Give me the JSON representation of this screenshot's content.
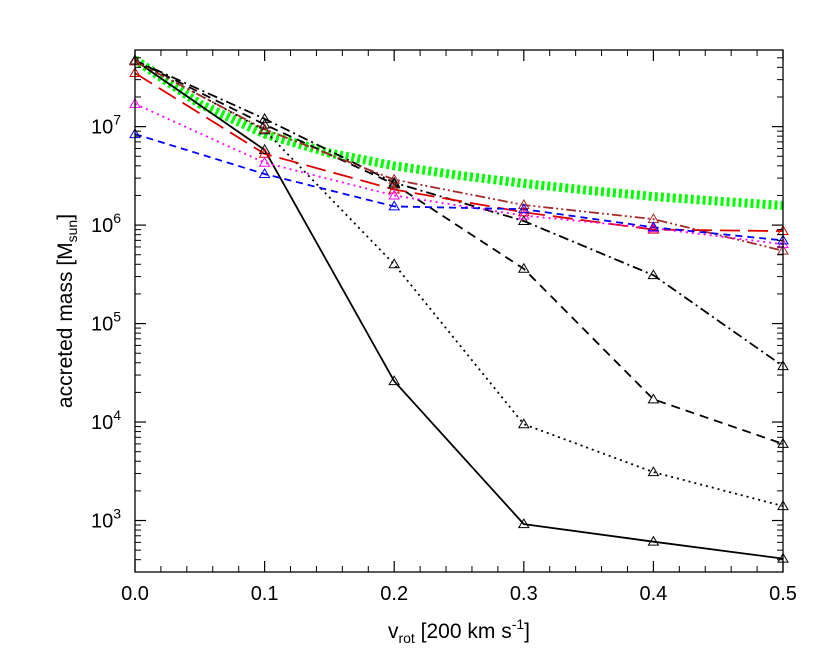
{
  "chart_data": {
    "type": "line",
    "title": "",
    "xlabel": {
      "main": "v",
      "sub": "rot",
      "rest": " [200 km s",
      "sup": "-1",
      "end": "]"
    },
    "ylabel": {
      "main": "accreted mass [M",
      "sub": "sun",
      "end": "]"
    },
    "xlim": [
      0.0,
      0.5
    ],
    "ylim": [
      300,
      60000000
    ],
    "yscale": "log",
    "x": [
      0.0,
      0.1,
      0.2,
      0.3,
      0.4,
      0.5
    ],
    "x_ticks": [
      {
        "value": 0.0,
        "label": "0.0"
      },
      {
        "value": 0.1,
        "label": "0.1"
      },
      {
        "value": 0.2,
        "label": "0.2"
      },
      {
        "value": 0.3,
        "label": "0.3"
      },
      {
        "value": 0.4,
        "label": "0.4"
      },
      {
        "value": 0.5,
        "label": "0.5"
      }
    ],
    "y_ticks": [
      {
        "value": 1000,
        "base": "10",
        "exp": "3"
      },
      {
        "value": 10000,
        "base": "10",
        "exp": "4"
      },
      {
        "value": 100000,
        "base": "10",
        "exp": "5"
      },
      {
        "value": 1000000,
        "base": "10",
        "exp": "6"
      },
      {
        "value": 10000000,
        "base": "10",
        "exp": "7"
      }
    ],
    "series": [
      {
        "color": "#00ff00",
        "style": "thick-dotted",
        "markers": false,
        "x": [
          0.0,
          0.05,
          0.1,
          0.15,
          0.2,
          0.25,
          0.3,
          0.35,
          0.4,
          0.45,
          0.5
        ],
        "values": [
          48000000,
          17000000,
          8400000,
          5400000,
          4000000,
          3200000,
          2650000,
          2250000,
          1950000,
          1750000,
          1580000
        ]
      },
      {
        "color": "#000000",
        "style": "solid",
        "markers": true,
        "values": [
          47000000,
          5800000,
          26000,
          920,
          610,
          410
        ]
      },
      {
        "color": "#000000",
        "style": "dotted",
        "markers": true,
        "values": [
          47000000,
          9200000,
          400000,
          9500,
          3100,
          1400
        ]
      },
      {
        "color": "#000000",
        "style": "dashed",
        "markers": true,
        "values": [
          47000000,
          10500000,
          2600000,
          360000,
          17000,
          6000
        ]
      },
      {
        "color": "#000000",
        "style": "dash-dot",
        "markers": true,
        "values": [
          47000000,
          12000000,
          2700000,
          1100000,
          310000,
          37000
        ]
      },
      {
        "color": "#a52a2a",
        "style": "dash-dot-dot",
        "markers": true,
        "values": [
          46000000,
          9400000,
          2900000,
          1600000,
          1150000,
          550000
        ]
      },
      {
        "color": "#dd0000",
        "style": "long-dash",
        "markers": true,
        "values": [
          35000000,
          5300000,
          2300000,
          1350000,
          900000,
          870000
        ]
      },
      {
        "color": "#ff00ff",
        "style": "dotted",
        "markers": true,
        "values": [
          17000000,
          4300000,
          2000000,
          1250000,
          930000,
          640000
        ]
      },
      {
        "color": "#0000ff",
        "style": "short-dash",
        "markers": true,
        "values": [
          8400000,
          3300000,
          1550000,
          1450000,
          950000,
          700000
        ]
      }
    ]
  }
}
